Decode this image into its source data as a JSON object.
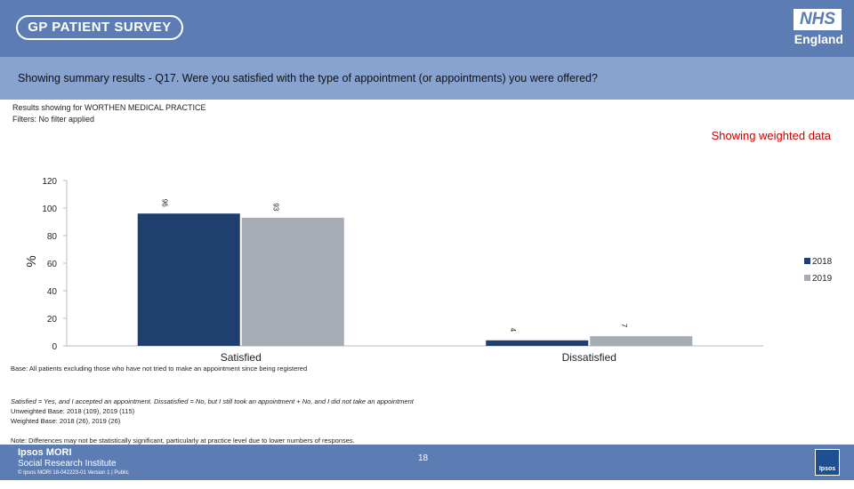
{
  "header": {
    "survey_logo": "GP PATIENT SURVEY",
    "nhs_logo": "NHS",
    "nhs_region": "England"
  },
  "question": "Showing summary results - Q17.  Were you satisfied with the type of appointment (or appointments) you were offered?",
  "meta": {
    "results_for": "Results showing for WORTHEN MEDICAL PRACTICE",
    "filters": "Filters: No filter applied",
    "weighted": "Showing weighted data"
  },
  "chart_data": {
    "type": "bar",
    "categories": [
      "Satisfied",
      "Dissatisfied"
    ],
    "series": [
      {
        "name": "2018",
        "values": [
          96,
          4
        ],
        "color": "#1f3f6e"
      },
      {
        "name": "2019",
        "values": [
          93,
          7
        ],
        "color": "#a6acb3"
      }
    ],
    "ylabel": "%",
    "ylim": [
      0,
      120
    ],
    "yticks": [
      "0",
      "20",
      "40",
      "60",
      "80",
      "100",
      "120"
    ],
    "legend_position": "right",
    "data_labels": {
      "Satisfied": [
        "96",
        "93"
      ],
      "Dissatisfied": [
        "4",
        "7"
      ]
    },
    "grid": false
  },
  "notes": {
    "base": "Base: All patients excluding those who have not tried to make an appointment since being registered",
    "definition": "Satisfied = Yes, and I accepted an appointment. Dissatisfied = No, but I still took an appointment + No, and I did not take an appointment",
    "unweighted": "Unweighted Base: 2018 (109), 2019 (115)",
    "weighted_base": "Weighted Base: 2018 (26), 2019 (26)",
    "disclaimer": "Note: Differences may not be statistically significant, particularly at practice level due to lower numbers of responses."
  },
  "footer": {
    "org_name": "Ipsos MORI",
    "org_sub": "Social Research Institute",
    "copyright": "© Ipsos MORI     18-042223-01 Version 1 | Public",
    "page": "18",
    "badge": "Ipsos"
  }
}
